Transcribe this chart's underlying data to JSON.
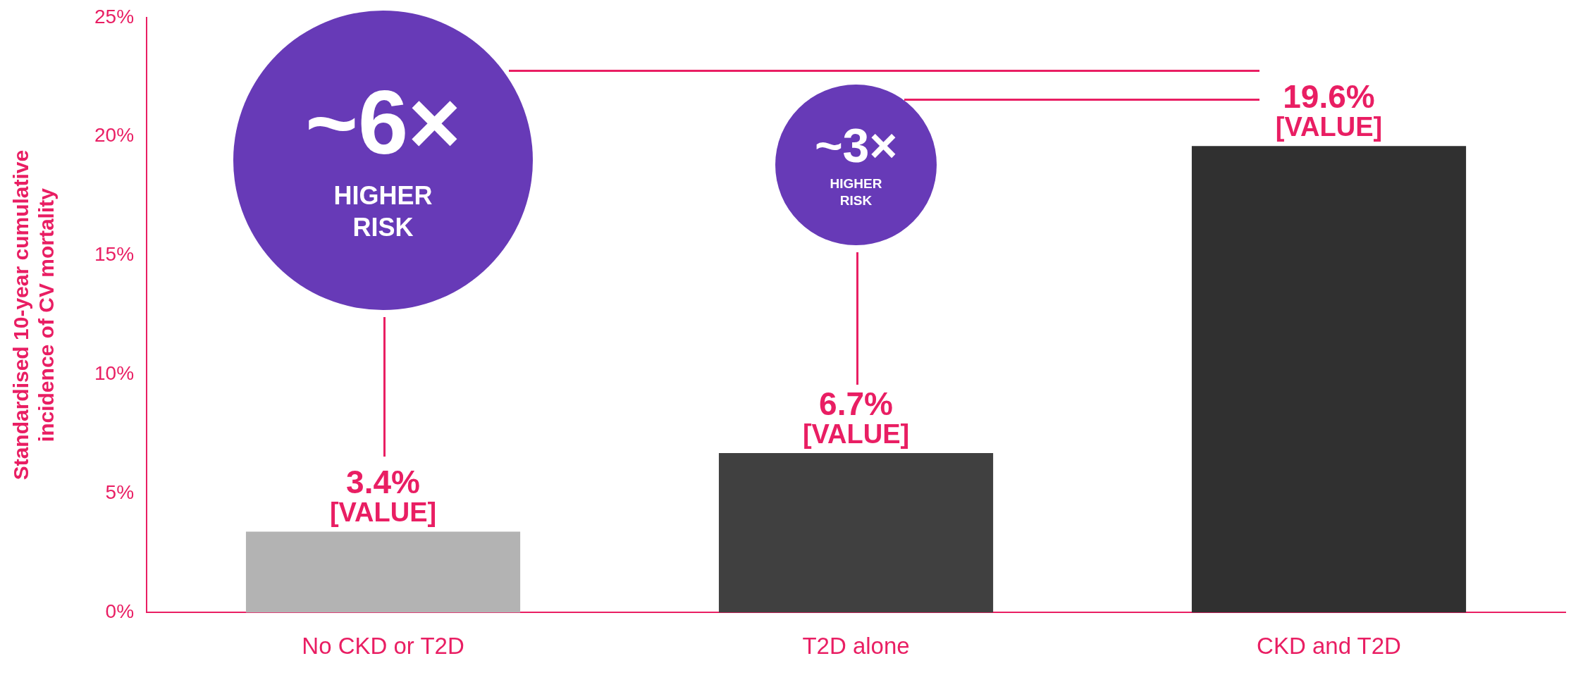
{
  "chart_data": {
    "type": "bar",
    "ylabel": "Standardised 10-year cumulative incidence of CV mortality",
    "categories": [
      "No CKD or T2D",
      "T2D alone",
      "CKD and T2D"
    ],
    "values": [
      3.4,
      6.7,
      19.6
    ],
    "colors": [
      "#b3b3b3",
      "#404040",
      "#303030"
    ],
    "value_labels": [
      "3.4%",
      "6.7%",
      "19.6%"
    ],
    "ylim": [
      0,
      25
    ],
    "yticks": [
      {
        "value": 0,
        "label": "0%"
      },
      {
        "value": 5,
        "label": "5%"
      },
      {
        "value": 10,
        "label": "10%"
      },
      {
        "value": 15,
        "label": "15%"
      },
      {
        "value": 20,
        "label": "20%"
      },
      {
        "value": 25,
        "label": "25%"
      }
    ],
    "grid": false,
    "legend": false,
    "annotations": [
      "~6×",
      "HIGHER RISK",
      "~3×",
      "HIGHER RISK",
      {
        "text": "[VALUE]",
        "x": "No CKD or T2D",
        "y": 3.4
      },
      {
        "text": "[VALUE]",
        "x": "T2D alone",
        "y": 6.7
      },
      {
        "text": "[VALUE]",
        "x": "CKD and T2D",
        "y": 19.6
      }
    ]
  }
}
